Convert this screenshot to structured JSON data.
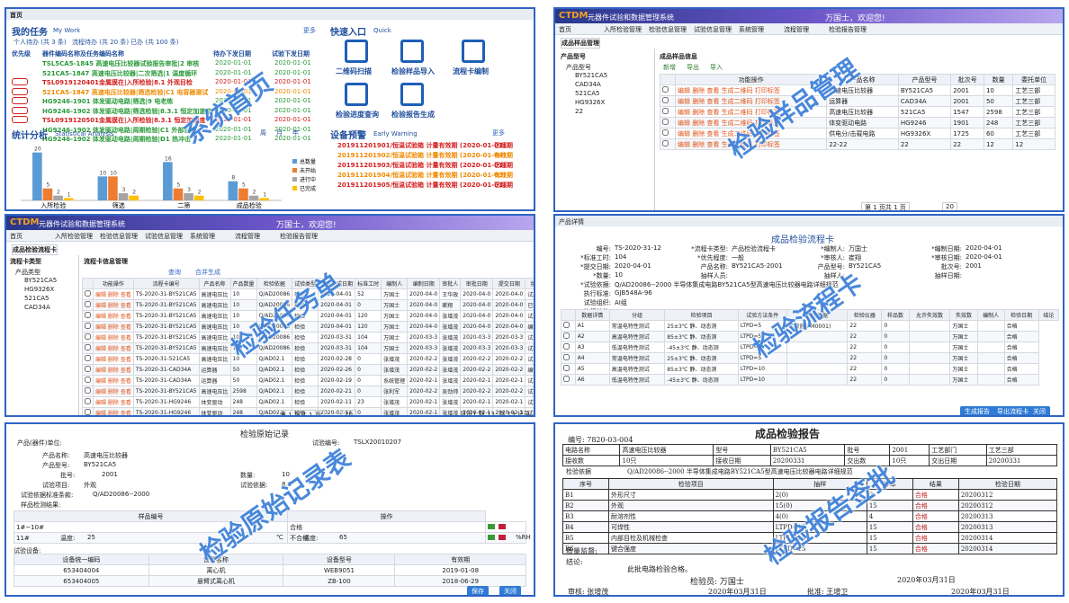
{
  "home": {
    "tab": "首页",
    "my_work": "我的任务",
    "my_work_en": "My Work",
    "more": "更多",
    "counts": [
      "个人待办 (共 3 条)",
      "流程待办 (共 20 条)",
      "已办 (共 100 条)"
    ],
    "task_header": [
      "优先级",
      "器件编码名称及任务编码名称",
      "待办下发日期",
      "试验下发日期"
    ],
    "tasks": [
      [
        "TSL5CA5-1845 高速电压比较器试验报告审批|2 审核",
        "2020-01-01",
        "2020-01-01"
      ],
      [
        "521CA5-1847 高速电压比较器|二次筛选|1 温度循环",
        "2020-01-01",
        "2020-01-01"
      ],
      [
        "TSL0919120401金属膜在|入所检验|8.1 外观目检",
        "2020-01-01",
        "2020-01-01"
      ],
      [
        "521CA5-1847 高速电压比较器|筛选检验|C1 电容器测试",
        "2020-01-01",
        "2020-01-01"
      ],
      [
        "HG9246-1901 体发驱动电路|筛选|9 电老练",
        "2020-01-01",
        "2020-01-01"
      ],
      [
        "HG9246-1902 体发驱动电路|筛选检验|8.3.1 恒定加速度",
        "2020-01-01",
        "2020-01-01"
      ],
      [
        "TSL0919120501金属膜在|入所检验|8.3.1 恒定加速度",
        "2020-01-01",
        "2020-01-01"
      ],
      [
        "HG9246-1902 体发驱动电路|周期检验|C1 外部目检",
        "2020-01-01",
        "2020-01-01"
      ],
      [
        "HG9246-1902 体发驱动电路|周期检验|D1 热冲击",
        "2020-01-01",
        "2020-01-01"
      ]
    ],
    "quick": "快速入口",
    "quick_en": "Quick",
    "quick_items": [
      "二维码扫描",
      "检验样品导入",
      "流程卡编制",
      "检验进度查询",
      "检验报告生成"
    ],
    "stats": "统计分析",
    "stats_en": "Statistical Analysis",
    "period": [
      "周",
      "月",
      "年"
    ],
    "warn": "设备预警",
    "warn_en": "Early Warning",
    "warnings": [
      [
        "201911201901/恒温试验箱 计量有效期 (2020-01-01)",
        "已超期"
      ],
      [
        "201911201902/恒温试验箱 计量有效期 (2020-01-04)",
        "有效期"
      ],
      [
        "201911201903/恒温试验箱 计量有效期 (2020-01-01)",
        "已超期"
      ],
      [
        "201911201904/恒温试验箱 计量有效期 (2020-01-03)",
        "有效期"
      ],
      [
        "201911201905/恒温试验箱 计量有效期 (2020-01-01)",
        "已超期"
      ]
    ],
    "chart": {
      "type": "bar",
      "categories": [
        "入所检验",
        "筛选",
        "二筛",
        "成品检验"
      ],
      "ylim": [
        0,
        24
      ],
      "series": [
        {
          "name": "总数量",
          "color": "#5b9bd5",
          "values": [
            20,
            10,
            16,
            8
          ]
        },
        {
          "name": "未开始",
          "color": "#ed7d31",
          "values": [
            5,
            10,
            5,
            5
          ]
        },
        {
          "name": "进行中",
          "color": "#a5a5a5",
          "values": [
            2,
            3,
            3,
            2
          ]
        },
        {
          "name": "已完成",
          "color": "#ffc000",
          "values": [
            1,
            2,
            2,
            1
          ]
        }
      ]
    },
    "watermark": "系统首页"
  },
  "app": {
    "brand": "CTDM",
    "name": "元器件试验和数据管理系统",
    "user": "万国士，欢迎您!",
    "menu": [
      "首页",
      "入所检验管理",
      "检验信息管理",
      "试验信息管理",
      "系统管理",
      "流程管理",
      "检验报告管理"
    ]
  },
  "sample": {
    "tab": "成品样品管理",
    "tree_title": "产品型号",
    "tree": [
      "产品型号",
      "BY521CA5",
      "CAD34A",
      "521CA5",
      "HG9326X",
      "22"
    ],
    "title": "成品样品信息",
    "buttons": [
      "新增",
      "导出",
      "导入"
    ],
    "ops": "编辑 删除 查看 生成二维码 打印标签",
    "header": [
      "功能操作",
      "产品名称",
      "产品型号",
      "批次号",
      "数量",
      "委托单位"
    ],
    "rows": [
      [
        "高速电压比较器",
        "BY521CA5",
        "2001",
        "10",
        "工艺三部"
      ],
      [
        "运算器",
        "CAD34A",
        "2001",
        "50",
        "工艺三部"
      ],
      [
        "高速电压比较器",
        "521CA5",
        "1547",
        "2598",
        "工艺三部"
      ],
      [
        "体变驱动电路",
        "HG9246",
        "1901",
        "248",
        "工艺三部"
      ],
      [
        "供电分/击载电路",
        "HG9326X",
        "1725",
        "60",
        "工艺三部"
      ],
      [
        "22-22",
        "22",
        "22",
        "12",
        "12"
      ]
    ],
    "page": "第 1 页共 1 页",
    "size": "20",
    "watermark": "检验样品管理"
  },
  "task": {
    "tab": "成品检验流程卡",
    "tree_title": "流程卡类型",
    "tree": [
      "产品类型",
      "BY521CA5",
      "HG9326X",
      "521CA5",
      "CAD34A"
    ],
    "title": "流程卡信息管理",
    "buttons": [
      "查询",
      "合并生成"
    ],
    "ops": "编辑 删除 查看",
    "header": [
      "功能操作",
      "流程卡编号",
      "产品名称",
      "产品数量",
      "检验依据",
      "试验类型",
      "要求完成日期",
      "标准工时",
      "编制人",
      "编制日期",
      "审批人",
      "审批日期",
      "提交日期",
      "状态"
    ],
    "rows": [
      [
        "TS-2020-31-BY521CA5",
        "高速电压比",
        "10",
        "Q/AD20086",
        "检验",
        "2020-04-01",
        "52",
        "万国士",
        "2020-04-0",
        "王华政",
        "2020-04-0",
        "2020-04-0",
        "试验中"
      ],
      [
        "TS-2020-31-BY521CA5",
        "高速电压比",
        "10",
        "Q/AD20086",
        "检验",
        "2020-04-01",
        "0",
        "万国士",
        "2020-04-0",
        "崔翔",
        "2020-04-0",
        "2020-04-0",
        "已完成"
      ],
      [
        "TS-2020-31-BY521CA5",
        "高速电压比",
        "10",
        "Q/AD20086",
        "检验",
        "2020-04-01",
        "120",
        "万国士",
        "2020-04-0",
        "张增茂",
        "2020-04-0",
        "2020-04-0",
        "试验中"
      ],
      [
        "TS-2020-31-BY521CA5",
        "高速电压比",
        "10",
        "Q/AD20086",
        "检验",
        "2020-04-01",
        "120",
        "万国士",
        "2020-04-0",
        "张增茂",
        "2020-04-0",
        "2020-04-0",
        "编制中"
      ],
      [
        "TS-2020-31-BY521CA5",
        "高速电压比",
        "10",
        "Q/AD20086",
        "检验",
        "2020-03-31",
        "104",
        "万国士",
        "2020-03-3",
        "张增茂",
        "2020-03-3",
        "2020-03-3",
        "试验中"
      ],
      [
        "TS-2020-31-BY521CA5",
        "高速电压比",
        "10",
        "Q/AD20086",
        "检验",
        "2020-03-31",
        "104",
        "万国士",
        "2020-03-3",
        "张增茂",
        "2020-03-3",
        "2020-03-3",
        "试验中"
      ],
      [
        "TS-2020-31-521CA5",
        "高速电压比",
        "10",
        "Q/AD02.1",
        "检验",
        "2020-02-28",
        "0",
        "张增茂",
        "2020-02-2",
        "张增茂",
        "2020-02-2",
        "2020-02-2",
        "试验中"
      ],
      [
        "TS-2020-31-CAD34A",
        "运算器",
        "50",
        "Q/AD02.1",
        "检验",
        "2020-02-26",
        "0",
        "张增茂",
        "2020-02-2",
        "张增茂",
        "2020-02-2",
        "2020-02-2",
        "编制中"
      ],
      [
        "TS-2020-31-CAD34A",
        "运算器",
        "50",
        "Q/AD02.1",
        "检验",
        "2020-02-19",
        "0",
        "系统管理",
        "2020-02-1",
        "张增茂",
        "2020-02-1",
        "2020-02-1",
        "试验中"
      ],
      [
        "TS-2020-31-BY521CA5",
        "高速电压比",
        "2598",
        "Q/AD02.1",
        "检验",
        "2020-02-21",
        "0",
        "张利军",
        "2020-02-2",
        "吴劲帅",
        "2020-02-2",
        "2020-02-2",
        "试验中"
      ],
      [
        "TS-2020-31-HG9246",
        "体变驱动",
        "248",
        "Q/AD02.1",
        "检验",
        "2020-02-11",
        "23",
        "张增茂",
        "2020-02-1",
        "张增茂",
        "2020-02-1",
        "2020-02-1",
        "试验中"
      ],
      [
        "TS-2020-31-HG9246",
        "体变驱动",
        "248",
        "Q/AD02.1",
        "检验",
        "2020-02-11",
        "0",
        "张增茂",
        "2020-02-1",
        "张增茂",
        "2020-02-1",
        "2020-02-1",
        "试验中"
      ],
      [
        "TS-2020-31-HG9326X",
        "供电分/击",
        "60",
        "Q/AD02.1",
        "检验",
        "2020-02-10",
        "0",
        "王华政",
        "2020-02-1",
        "周士行",
        "2020-02-1",
        "2020-02-1",
        "试验中"
      ]
    ],
    "page": "第 1 页共 1 页",
    "size": "20",
    "summary": "显示1 到 13, 共 13 记录",
    "watermark": "检验任务单"
  },
  "card": {
    "tab": "产品详情",
    "title": "成品检验流程卡",
    "fields": [
      [
        "编号:",
        "TS-2020-31-12"
      ],
      [
        "*流程卡类型:",
        "产品检验流程卡"
      ],
      [
        "*编制人:",
        "万国士"
      ],
      [
        "*编制日期:",
        "2020-04-01"
      ],
      [
        "*标准工时:",
        "104"
      ],
      [
        "*优先程度:",
        "一般"
      ],
      [
        "*审核人:",
        "崔翔"
      ],
      [
        "*审核日期:",
        "2020-04-01"
      ],
      [
        "*提交日期:",
        "2020-04-01"
      ],
      [
        "产品名称:",
        "BY521CA5-2001"
      ],
      [
        "产品型号:",
        "BY521CA5"
      ],
      [
        "批次号:",
        "2001"
      ],
      [
        "*数量:",
        "10"
      ],
      [
        "抽样人员:",
        ""
      ],
      [
        "抽样人:",
        ""
      ],
      [
        "抽样日期:",
        ""
      ],
      [
        "*试验依据:",
        "Q/AD20086--2000 半导体集成电路BY521CA5型高速电压比较器电路详细规范"
      ],
      [
        "执行标准:",
        "GJB548A-96"
      ],
      [
        "试验组织:",
        "AI组"
      ],
      [
        "执行单位:",
        ""
      ]
    ],
    "header": [
      "数据详情",
      "分组",
      "检验项目",
      "试验方法条件",
      "判定依据",
      "检验仪器",
      "样品数",
      "允许失效数",
      "失效数",
      "编制人",
      "检验日期",
      "结论"
    ],
    "rows": [
      [
        "A1",
        "常温电特性测试",
        "25±3℃ 静、动态测",
        "LTPD=5",
        "示波器(PM0001)",
        "22",
        "0",
        "",
        "万国士",
        "",
        "合格"
      ],
      [
        "A2",
        "高温电特性测试",
        "85±3℃ 静、动态测",
        "LTPD=5",
        "",
        "22",
        "0",
        "",
        "万国士",
        "",
        "合格"
      ],
      [
        "A3",
        "低温电特性测试",
        "-45±3℃ 静、动态测",
        "LTPD=5",
        "",
        "22",
        "0",
        "",
        "万国士",
        "",
        "合格"
      ],
      [
        "A4",
        "常温电特性测试",
        "25±3℃ 静、动态测",
        "LTPD=5",
        "",
        "22",
        "0",
        "",
        "万国士",
        "",
        "合格"
      ],
      [
        "A5",
        "高温电特性测试",
        "85±3℃ 静、动态测",
        "LTPD=10",
        "",
        "22",
        "0",
        "",
        "万国士",
        "",
        "合格"
      ],
      [
        "A6",
        "低温电特性测试",
        "-45±3℃ 静、动态测",
        "LTPD=10",
        "",
        "22",
        "0",
        "",
        "万国士",
        "",
        "合格"
      ]
    ],
    "buttons": [
      "生成报告",
      "导出流程卡",
      "关闭"
    ],
    "watermark": "检验流程卡"
  },
  "record": {
    "title": "检验原始记录",
    "fields": [
      [
        "产品(器件)单位:",
        ""
      ],
      [
        "产品名称:",
        "高速电压比较器"
      ],
      [
        "产品型号:",
        "BY521CA5"
      ],
      [
        "批号:",
        "2001"
      ],
      [
        "数量:",
        "10"
      ],
      [
        "试验项目:",
        "外观"
      ],
      [
        "试验编号:",
        "TSLX20010207"
      ],
      [
        "试验依据标准条款:",
        "Q/AD20086--2000"
      ],
      [
        "试验依据:",
        "8.1"
      ]
    ],
    "result_label": "样品检测结果:",
    "result_header": [
      "样品编号",
      "操作"
    ],
    "results": [
      [
        "1#~10#",
        "合格"
      ],
      [
        "11#",
        "不合格"
      ]
    ],
    "temp_label": "温度:",
    "temp": "25",
    "temp_unit": "℃",
    "hum_label": "湿度:",
    "hum": "65",
    "hum_unit": "%RH",
    "equip_label": "试验设备:",
    "equip_header": [
      "设备统一编码",
      "设备名称",
      "设备型号",
      "有效期"
    ],
    "equip": [
      [
        "653404004",
        "离心机",
        "WEB9051",
        "2019-01-08"
      ],
      [
        "653404005",
        "悬臂式离心机",
        "ZB-100",
        "2018-06-29"
      ]
    ],
    "buttons": [
      "保存",
      "关闭"
    ],
    "watermark": "检验原始记录表"
  },
  "report": {
    "title": "成品检验报告",
    "no": "编号: 7820-03-004",
    "info": [
      [
        "电路名称",
        "高速电压比较器",
        "型号",
        "BY521CA5",
        "批号",
        "2001",
        "工艺部门",
        "工艺三部"
      ],
      [
        "接收数",
        "10只",
        "接收日期",
        "20200331",
        "交出数",
        "10只",
        "交出日期",
        "20200331"
      ]
    ],
    "basis_label": "检验依据",
    "basis": "Q/AD20086--2000 半导体集成电路BY521CA5型高速电压比较器电路详细规范",
    "header": [
      "序号",
      "检验项目",
      "抽样",
      "样本",
      "结果",
      "检验日期"
    ],
    "rows": [
      [
        "B1",
        "外形尺寸",
        "2(0)",
        "2",
        "合格",
        "20200312"
      ],
      [
        "B2",
        "外观",
        "15(0)",
        "15",
        "合格",
        "20200312"
      ],
      [
        "B3",
        "耐溶剂性",
        "4(0)",
        "4",
        "合格",
        "20200313"
      ],
      [
        "B4",
        "可焊性",
        "LTPD=15",
        "15",
        "合格",
        "20200313"
      ],
      [
        "B5",
        "内部目检及机械检查",
        "LTPD=15",
        "15",
        "合格",
        "20200314"
      ],
      [
        "B6",
        "键合强度",
        "LTPD=15",
        "15",
        "合格",
        "20200314"
      ]
    ],
    "quality": "质量监督:",
    "conclusion_label": "结论:",
    "conclusion": "此批电路检验合格。",
    "inspector": "检验员: 万国士",
    "date": "2020年03月31日",
    "sign": [
      "审核: 张增茂",
      "2020年03月31日",
      "批准: 王增卫",
      "2020年03月31日"
    ],
    "watermark": "检验报告签批"
  }
}
